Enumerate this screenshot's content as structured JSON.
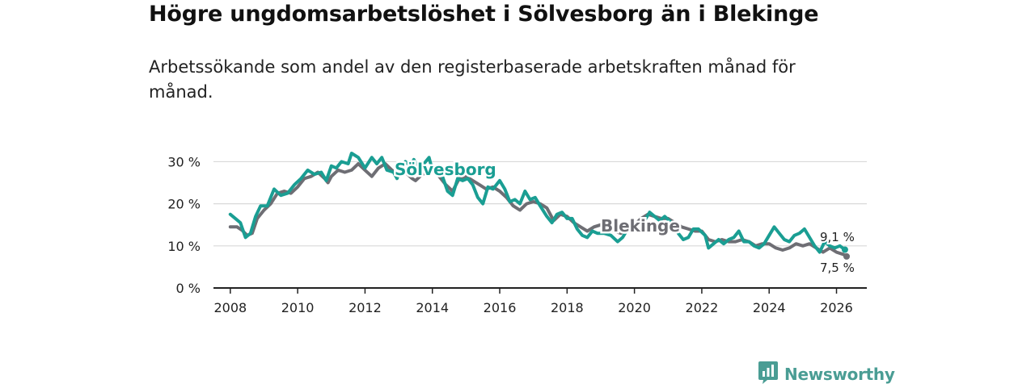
{
  "header": {
    "title": "Högre ungdomsarbetslöshet i Sölvesborg än i Blekinge",
    "subtitle": "Arbetssökande som andel av den registerbaserade arbetskraften månad för månad."
  },
  "brand": {
    "name": "Newsworthy",
    "color": "#4a9d94",
    "icon": "bar-chart-logo-icon"
  },
  "colors": {
    "solvesborg": "#1a9e93",
    "blekinge": "#6e6e74",
    "grid": "#d9d9d9",
    "axis": "#222222"
  },
  "chart_data": {
    "type": "line",
    "title": "Högre ungdomsarbetslöshet i Sölvesborg än i Blekinge",
    "xlabel": "",
    "ylabel": "",
    "xlim": [
      2007.5,
      2026.9
    ],
    "ylim": [
      0,
      32
    ],
    "grid": true,
    "x_ticks": [
      2008,
      2010,
      2012,
      2014,
      2016,
      2018,
      2020,
      2022,
      2024,
      2026
    ],
    "x_tick_labels": [
      "2008",
      "2010",
      "2012",
      "2014",
      "2016",
      "2018",
      "2020",
      "2022",
      "2024",
      "2026"
    ],
    "y_ticks": [
      0,
      10,
      20,
      30
    ],
    "y_tick_labels": [
      "0 %",
      "10 %",
      "20 %",
      "30 %"
    ],
    "series": [
      {
        "name": "Blekinge",
        "label": "Blekinge",
        "end_label": "7,5 %",
        "points": [
          [
            2008.0,
            14.5
          ],
          [
            2008.2,
            14.5
          ],
          [
            2008.35,
            13.7
          ],
          [
            2008.5,
            12.5
          ],
          [
            2008.65,
            13.0
          ],
          [
            2008.8,
            16.5
          ],
          [
            2009.0,
            18.5
          ],
          [
            2009.2,
            20.0
          ],
          [
            2009.4,
            22.5
          ],
          [
            2009.6,
            23.0
          ],
          [
            2009.8,
            22.5
          ],
          [
            2010.0,
            24.0
          ],
          [
            2010.2,
            26.0
          ],
          [
            2010.4,
            26.5
          ],
          [
            2010.6,
            27.5
          ],
          [
            2010.8,
            26.0
          ],
          [
            2010.9,
            25.0
          ],
          [
            2011.0,
            26.5
          ],
          [
            2011.2,
            28.0
          ],
          [
            2011.4,
            27.5
          ],
          [
            2011.6,
            28.0
          ],
          [
            2011.8,
            29.5
          ],
          [
            2012.0,
            28.0
          ],
          [
            2012.2,
            26.5
          ],
          [
            2012.4,
            28.5
          ],
          [
            2012.6,
            29.5
          ],
          [
            2012.8,
            28.0
          ],
          [
            2013.0,
            27.0
          ],
          [
            2013.2,
            27.5
          ],
          [
            2013.4,
            26.0
          ],
          [
            2013.5,
            25.5
          ],
          [
            2013.7,
            27.0
          ],
          [
            2014.0,
            28.0
          ],
          [
            2014.2,
            26.5
          ],
          [
            2014.4,
            24.5
          ],
          [
            2014.6,
            23.0
          ],
          [
            2014.8,
            26.0
          ],
          [
            2015.0,
            26.5
          ],
          [
            2015.2,
            25.5
          ],
          [
            2015.4,
            24.5
          ],
          [
            2015.6,
            23.5
          ],
          [
            2015.8,
            24.0
          ],
          [
            2016.0,
            23.0
          ],
          [
            2016.2,
            21.5
          ],
          [
            2016.4,
            19.5
          ],
          [
            2016.6,
            18.5
          ],
          [
            2016.8,
            20.0
          ],
          [
            2017.0,
            20.5
          ],
          [
            2017.2,
            20.0
          ],
          [
            2017.4,
            19.0
          ],
          [
            2017.6,
            16.0
          ],
          [
            2017.8,
            17.5
          ],
          [
            2018.0,
            17.0
          ],
          [
            2018.2,
            15.5
          ],
          [
            2018.4,
            14.5
          ],
          [
            2018.6,
            13.5
          ],
          [
            2018.8,
            14.5
          ],
          [
            2019.0,
            15.0
          ],
          [
            2019.2,
            14.0
          ],
          [
            2019.4,
            13.5
          ],
          [
            2019.6,
            13.0
          ],
          [
            2019.8,
            14.5
          ],
          [
            2020.0,
            15.0
          ],
          [
            2020.2,
            16.5
          ],
          [
            2020.4,
            17.5
          ],
          [
            2020.6,
            17.0
          ],
          [
            2020.8,
            16.5
          ],
          [
            2021.0,
            16.5
          ],
          [
            2021.2,
            15.5
          ],
          [
            2021.4,
            14.5
          ],
          [
            2021.6,
            14.0
          ],
          [
            2021.8,
            13.5
          ],
          [
            2022.0,
            13.5
          ],
          [
            2022.2,
            11.5
          ],
          [
            2022.4,
            11.0
          ],
          [
            2022.6,
            11.5
          ],
          [
            2022.8,
            11.0
          ],
          [
            2023.0,
            11.0
          ],
          [
            2023.2,
            11.5
          ],
          [
            2023.4,
            11.0
          ],
          [
            2023.6,
            10.0
          ],
          [
            2023.8,
            10.5
          ],
          [
            2024.0,
            10.5
          ],
          [
            2024.2,
            9.5
          ],
          [
            2024.4,
            9.0
          ],
          [
            2024.6,
            9.5
          ],
          [
            2024.8,
            10.5
          ],
          [
            2025.0,
            10.0
          ],
          [
            2025.2,
            10.5
          ],
          [
            2025.4,
            9.5
          ],
          [
            2025.6,
            8.5
          ],
          [
            2025.8,
            9.5
          ],
          [
            2026.0,
            8.5
          ],
          [
            2026.2,
            8.0
          ],
          [
            2026.3,
            7.5
          ]
        ]
      },
      {
        "name": "Sölvesborg",
        "label": "Sölvesborg",
        "end_label": "9,1 %",
        "points": [
          [
            2008.0,
            17.5
          ],
          [
            2008.15,
            16.5
          ],
          [
            2008.3,
            15.5
          ],
          [
            2008.45,
            12.0
          ],
          [
            2008.6,
            13.0
          ],
          [
            2008.75,
            17.0
          ],
          [
            2008.9,
            19.5
          ],
          [
            2009.1,
            19.5
          ],
          [
            2009.3,
            23.5
          ],
          [
            2009.5,
            22.0
          ],
          [
            2009.7,
            22.5
          ],
          [
            2009.9,
            24.5
          ],
          [
            2010.1,
            26.0
          ],
          [
            2010.3,
            28.0
          ],
          [
            2010.5,
            27.0
          ],
          [
            2010.7,
            27.5
          ],
          [
            2010.85,
            25.5
          ],
          [
            2011.0,
            29.0
          ],
          [
            2011.15,
            28.5
          ],
          [
            2011.3,
            30.0
          ],
          [
            2011.5,
            29.5
          ],
          [
            2011.6,
            32.0
          ],
          [
            2011.8,
            31.0
          ],
          [
            2012.0,
            28.5
          ],
          [
            2012.2,
            31.0
          ],
          [
            2012.35,
            29.5
          ],
          [
            2012.5,
            31.0
          ],
          [
            2012.65,
            28.0
          ],
          [
            2012.85,
            27.5
          ],
          [
            2012.95,
            26.0
          ],
          [
            2013.05,
            28.0
          ],
          [
            2013.2,
            30.0
          ],
          [
            2013.35,
            29.0
          ],
          [
            2013.45,
            30.5
          ],
          [
            2013.6,
            28.5
          ],
          [
            2013.75,
            29.5
          ],
          [
            2013.9,
            31.0
          ],
          [
            2014.0,
            28.0
          ],
          [
            2014.15,
            29.0
          ],
          [
            2014.3,
            26.5
          ],
          [
            2014.45,
            23.0
          ],
          [
            2014.6,
            22.0
          ],
          [
            2014.75,
            26.0
          ],
          [
            2014.9,
            25.5
          ],
          [
            2015.05,
            26.0
          ],
          [
            2015.2,
            24.5
          ],
          [
            2015.35,
            21.5
          ],
          [
            2015.5,
            20.0
          ],
          [
            2015.65,
            24.0
          ],
          [
            2015.8,
            23.5
          ],
          [
            2016.0,
            25.5
          ],
          [
            2016.15,
            23.5
          ],
          [
            2016.3,
            20.5
          ],
          [
            2016.45,
            21.0
          ],
          [
            2016.6,
            20.0
          ],
          [
            2016.75,
            23.0
          ],
          [
            2016.9,
            21.0
          ],
          [
            2017.05,
            21.5
          ],
          [
            2017.2,
            19.5
          ],
          [
            2017.4,
            17.0
          ],
          [
            2017.55,
            15.5
          ],
          [
            2017.7,
            17.5
          ],
          [
            2017.85,
            18.0
          ],
          [
            2018.0,
            16.5
          ],
          [
            2018.15,
            16.5
          ],
          [
            2018.3,
            14.0
          ],
          [
            2018.45,
            12.5
          ],
          [
            2018.6,
            12.0
          ],
          [
            2018.75,
            13.5
          ],
          [
            2018.9,
            13.0
          ],
          [
            2019.1,
            13.0
          ],
          [
            2019.3,
            12.5
          ],
          [
            2019.5,
            11.0
          ],
          [
            2019.65,
            12.0
          ],
          [
            2019.8,
            14.0
          ],
          [
            2019.95,
            13.5
          ],
          [
            2020.1,
            15.0
          ],
          [
            2020.3,
            16.0
          ],
          [
            2020.45,
            18.0
          ],
          [
            2020.6,
            17.0
          ],
          [
            2020.75,
            16.0
          ],
          [
            2020.9,
            17.0
          ],
          [
            2021.1,
            15.5
          ],
          [
            2021.3,
            13.0
          ],
          [
            2021.45,
            11.5
          ],
          [
            2021.6,
            12.0
          ],
          [
            2021.75,
            14.0
          ],
          [
            2021.9,
            14.0
          ],
          [
            2022.1,
            12.5
          ],
          [
            2022.2,
            9.5
          ],
          [
            2022.35,
            10.5
          ],
          [
            2022.5,
            11.5
          ],
          [
            2022.65,
            10.5
          ],
          [
            2022.8,
            11.5
          ],
          [
            2022.95,
            12.0
          ],
          [
            2023.1,
            13.5
          ],
          [
            2023.25,
            11.0
          ],
          [
            2023.4,
            11.0
          ],
          [
            2023.55,
            10.0
          ],
          [
            2023.7,
            9.5
          ],
          [
            2023.85,
            10.5
          ],
          [
            2024.0,
            12.5
          ],
          [
            2024.15,
            14.5
          ],
          [
            2024.3,
            13.0
          ],
          [
            2024.45,
            11.5
          ],
          [
            2024.6,
            11.0
          ],
          [
            2024.75,
            12.5
          ],
          [
            2024.9,
            13.0
          ],
          [
            2025.05,
            14.0
          ],
          [
            2025.2,
            12.0
          ],
          [
            2025.35,
            10.0
          ],
          [
            2025.5,
            8.5
          ],
          [
            2025.65,
            11.0
          ],
          [
            2025.8,
            10.0
          ],
          [
            2025.95,
            9.5
          ],
          [
            2026.1,
            10.0
          ],
          [
            2026.25,
            9.1
          ]
        ]
      }
    ]
  }
}
